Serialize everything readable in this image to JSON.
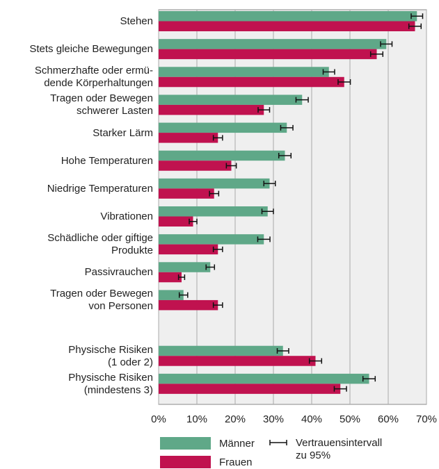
{
  "chart_data": {
    "type": "hbar_error",
    "categories": [
      "Stehen",
      "Stets gleiche Bewegungen",
      "Schmerzhafte oder ermü-\ndende Körperhaltungen",
      "Tragen oder Bewegen\nschwerer Lasten",
      "Starker Lärm",
      "Hohe Temperaturen",
      "Niedrige Temperaturen",
      "Vibrationen",
      "Schädliche oder giftige\nProdukte",
      "Passivrauchen",
      "Tragen oder Bewegen\nvon Personen",
      null,
      "Physische Risiken\n(1 oder 2)",
      "Physische Risiken\n(mindestens 3)"
    ],
    "series": [
      {
        "name": "Männer",
        "color": "#5fa888",
        "values": [
          67.5,
          59.5,
          44.5,
          37.5,
          33.5,
          33,
          29,
          28.5,
          27.5,
          13.5,
          6.5,
          null,
          32.5,
          55
        ],
        "errors": [
          1.5,
          1.5,
          1.5,
          1.6,
          1.6,
          1.6,
          1.5,
          1.5,
          1.6,
          1.1,
          1.1,
          null,
          1.5,
          1.6
        ]
      },
      {
        "name": "Frauen",
        "color": "#c0124f",
        "values": [
          67,
          57,
          48.5,
          27.5,
          15.5,
          19,
          14.5,
          9,
          15.5,
          6,
          15.5,
          null,
          41,
          47.5
        ],
        "errors": [
          1.6,
          1.6,
          1.6,
          1.5,
          1.2,
          1.3,
          1.2,
          1.0,
          1.2,
          0.8,
          1.2,
          null,
          1.6,
          1.6
        ]
      }
    ],
    "errorbar_label": "Vertrauensintervall\nzu 95%",
    "xlim": [
      0,
      70
    ],
    "xticks": [
      {
        "value": 0,
        "label": "0%"
      },
      {
        "value": 10,
        "label": "10%"
      },
      {
        "value": 20,
        "label": "20%"
      },
      {
        "value": 30,
        "label": "30%"
      },
      {
        "value": 40,
        "label": "40%"
      },
      {
        "value": 50,
        "label": "50%"
      },
      {
        "value": 60,
        "label": "60%"
      },
      {
        "value": 70,
        "label": "70%"
      }
    ],
    "grid": true
  }
}
